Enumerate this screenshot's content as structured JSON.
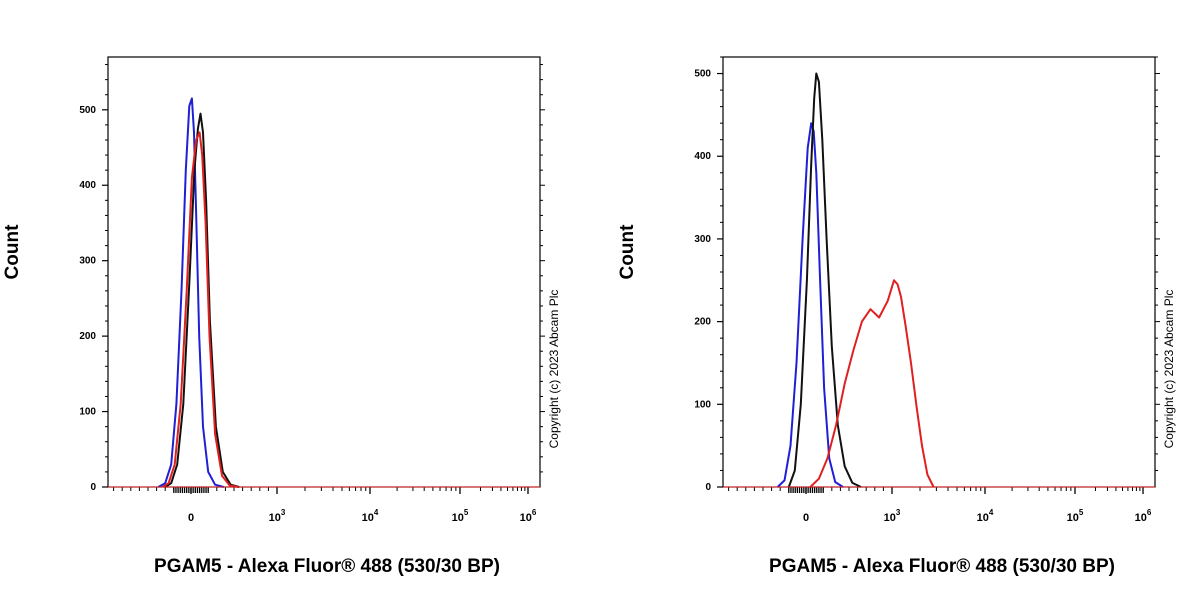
{
  "chart_data": [
    {
      "type": "line",
      "ylabel": "Count",
      "xlabel": "PGAM5 - Alexa Fluor® 488 (530/30 BP)",
      "copyright": "Copyright (c) 2023 Abcam Plc",
      "x_scale": "biexponential",
      "ylim": [
        0,
        570
      ],
      "y_ticks": [
        0,
        100,
        200,
        300,
        400,
        500
      ],
      "x_ticks": [
        {
          "base": "0",
          "exp": ""
        },
        {
          "base": "10",
          "exp": "3"
        },
        {
          "base": "10",
          "exp": "4"
        },
        {
          "base": "10",
          "exp": "5"
        },
        {
          "base": "10",
          "exp": "6"
        }
      ],
      "series": [
        {
          "color": "#1f1fd6",
          "x": [
            -380,
            -300,
            -230,
            -170,
            -110,
            -60,
            -20,
            10,
            35,
            60,
            95,
            140,
            200,
            280,
            380
          ],
          "y": [
            0,
            5,
            30,
            110,
            260,
            420,
            505,
            515,
            470,
            360,
            200,
            80,
            20,
            3,
            0
          ]
        },
        {
          "color": "#111111",
          "x": [
            -300,
            -230,
            -160,
            -90,
            -20,
            40,
            80,
            110,
            140,
            175,
            220,
            290,
            370,
            460,
            560
          ],
          "y": [
            0,
            5,
            30,
            110,
            270,
            420,
            475,
            495,
            470,
            380,
            220,
            80,
            20,
            3,
            0
          ]
        },
        {
          "color": "#e02020",
          "x": [
            -330,
            -260,
            -190,
            -120,
            -50,
            10,
            60,
            100,
            130,
            170,
            215,
            280,
            360,
            450,
            550
          ],
          "y": [
            0,
            5,
            30,
            110,
            260,
            410,
            460,
            470,
            440,
            350,
            200,
            70,
            15,
            2,
            0
          ]
        }
      ]
    },
    {
      "type": "line",
      "ylabel": "Count",
      "xlabel": "PGAM5 - Alexa Fluor® 488 (530/30 BP)",
      "copyright": "Copyright (c) 2023 Abcam Plc",
      "x_scale": "biexponential",
      "ylim": [
        0,
        520
      ],
      "y_ticks": [
        0,
        100,
        200,
        300,
        400,
        500
      ],
      "x_ticks": [
        {
          "base": "0",
          "exp": ""
        },
        {
          "base": "10",
          "exp": "3"
        },
        {
          "base": "10",
          "exp": "4"
        },
        {
          "base": "10",
          "exp": "5"
        },
        {
          "base": "10",
          "exp": "6"
        }
      ],
      "series": [
        {
          "color": "#1f1fd6",
          "x": [
            -330,
            -250,
            -180,
            -110,
            -40,
            20,
            60,
            90,
            120,
            160,
            210,
            270,
            340,
            430
          ],
          "y": [
            0,
            8,
            50,
            150,
            300,
            410,
            440,
            430,
            380,
            260,
            120,
            35,
            6,
            0
          ]
        },
        {
          "color": "#111111",
          "x": [
            -200,
            -130,
            -60,
            10,
            60,
            95,
            120,
            150,
            190,
            240,
            300,
            370,
            450,
            540,
            640
          ],
          "y": [
            0,
            20,
            100,
            250,
            390,
            470,
            500,
            490,
            420,
            300,
            170,
            75,
            25,
            5,
            0
          ]
        },
        {
          "color": "#e02020",
          "x": [
            50,
            150,
            250,
            350,
            450,
            550,
            650,
            750,
            850,
            950,
            1050,
            1150,
            1250,
            1400,
            1600,
            1850,
            2100,
            2400,
            2800
          ],
          "y": [
            0,
            10,
            35,
            75,
            125,
            165,
            200,
            215,
            205,
            225,
            250,
            245,
            230,
            195,
            150,
            95,
            50,
            15,
            0
          ]
        }
      ]
    }
  ]
}
